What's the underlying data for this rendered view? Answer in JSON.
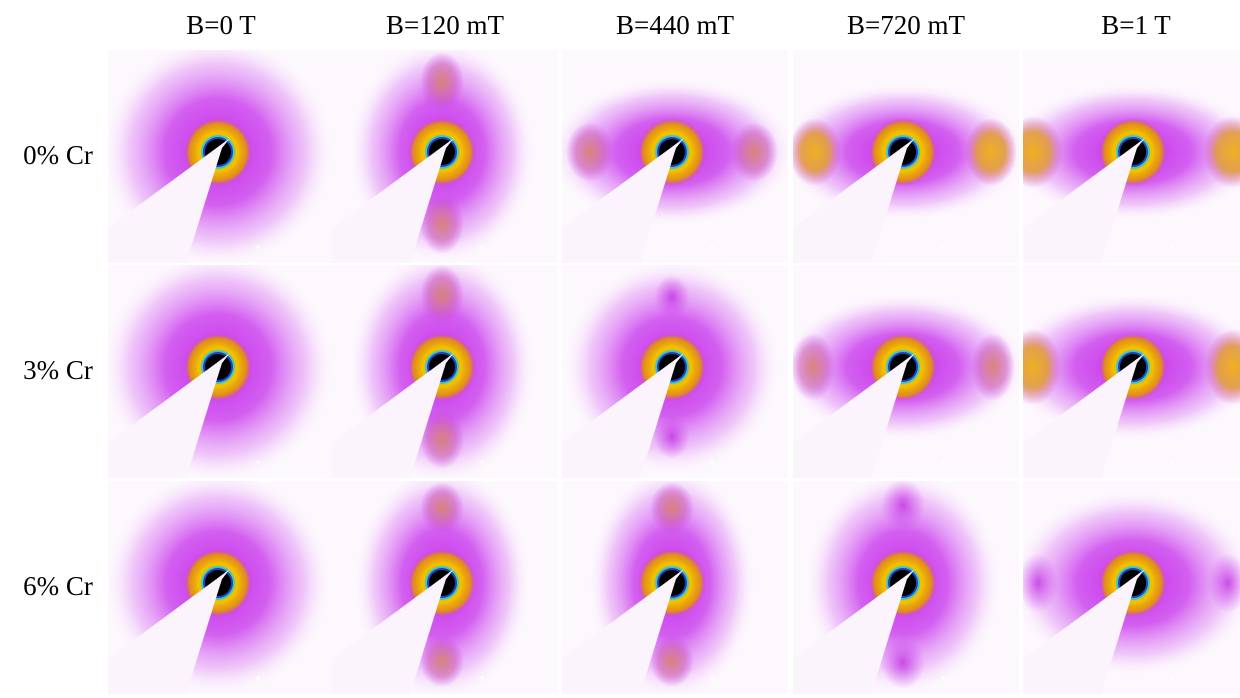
{
  "columns": [
    "B=0 T",
    "B=120 mT",
    "B=440 mT",
    "B=720 mT",
    "B=1 T"
  ],
  "rows": [
    "0% Cr",
    "3% Cr",
    "6% Cr"
  ]
}
